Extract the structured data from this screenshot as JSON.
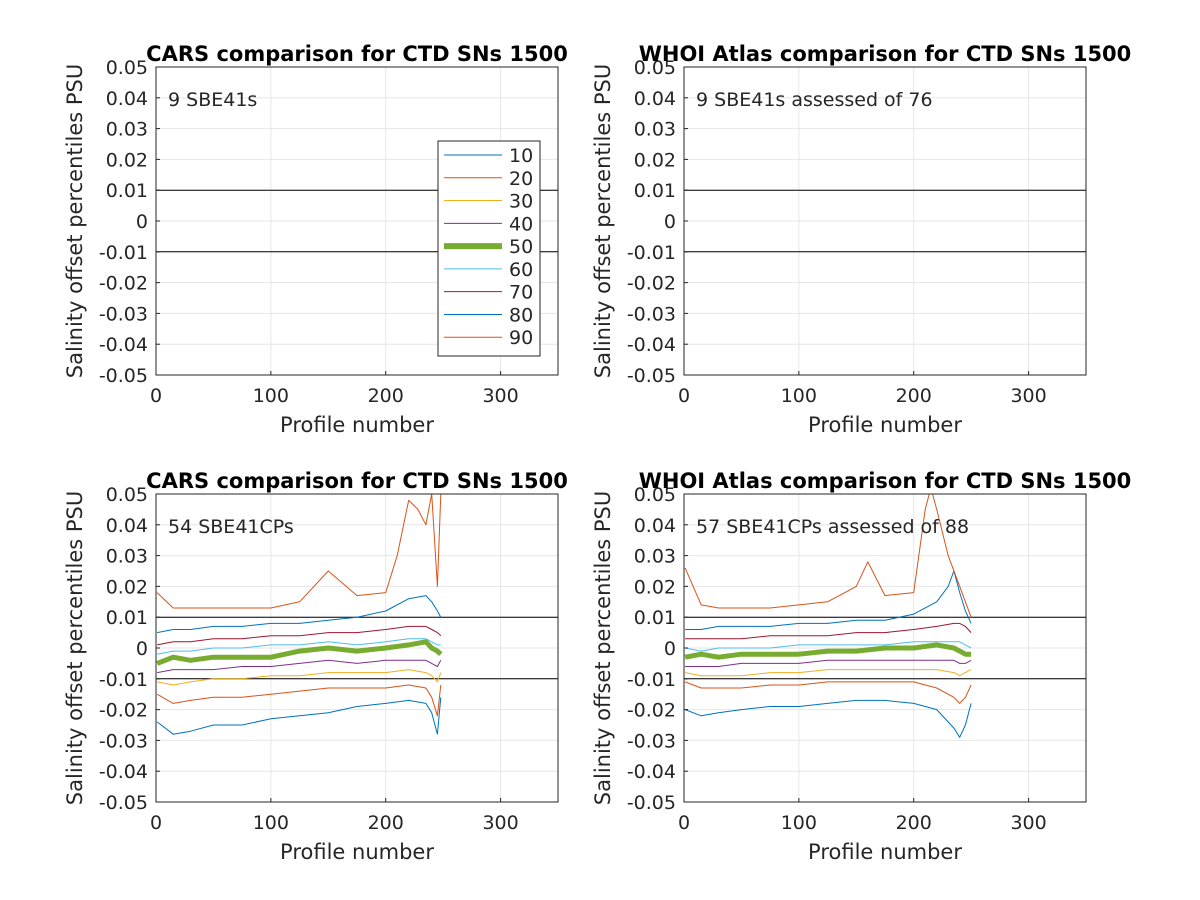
{
  "chart_data": [
    {
      "type": "line",
      "title": "CARS comparison for CTD SNs 1500",
      "xlabel": "Profile number",
      "ylabel": "Salinity offset percentiles PSU",
      "xlim": [
        0,
        350
      ],
      "ylim": [
        -0.05,
        0.05
      ],
      "xticks": [
        0,
        100,
        200,
        300
      ],
      "yticks": [
        0.05,
        0.04,
        0.03,
        0.02,
        0.01,
        0,
        -0.01,
        -0.02,
        -0.03,
        -0.04,
        -0.05
      ],
      "xtick_labels": [
        "0",
        "100",
        "200",
        "300"
      ],
      "ytick_labels": [
        "0.05",
        "0.04",
        "0.03",
        "0.02",
        "0.01",
        "0",
        "-0.01",
        "-0.02",
        "-0.03",
        "-0.04",
        "-0.05"
      ],
      "grid": true,
      "reference_lines": [
        0.01,
        -0.01
      ],
      "annotation": "9 SBE41s",
      "legend": {
        "location": "right",
        "entries": [
          "10",
          "20",
          "30",
          "40",
          "50",
          "60",
          "70",
          "80",
          "90"
        ],
        "colors": [
          "#0072BD",
          "#D95319",
          "#EDB120",
          "#7E2F8E",
          "#77AC30",
          "#4DBEEE",
          "#A2142F",
          "#0072BD",
          "#D95319"
        ]
      },
      "series": []
    },
    {
      "type": "line",
      "title": "WHOI Atlas comparison for CTD SNs 1500",
      "xlabel": "Profile number",
      "ylabel": "Salinity offset percentiles PSU",
      "xlim": [
        0,
        350
      ],
      "ylim": [
        -0.05,
        0.05
      ],
      "xticks": [
        0,
        100,
        200,
        300
      ],
      "yticks": [
        0.05,
        0.04,
        0.03,
        0.02,
        0.01,
        0,
        -0.01,
        -0.02,
        -0.03,
        -0.04,
        -0.05
      ],
      "xtick_labels": [
        "0",
        "100",
        "200",
        "300"
      ],
      "ytick_labels": [
        "0.05",
        "0.04",
        "0.03",
        "0.02",
        "0.01",
        "0",
        "-0.01",
        "-0.02",
        "-0.03",
        "-0.04",
        "-0.05"
      ],
      "grid": true,
      "reference_lines": [
        0.01,
        -0.01
      ],
      "annotation": "9 SBE41s assessed of 76",
      "series": []
    },
    {
      "type": "line",
      "title": "CARS comparison for CTD SNs 1500",
      "xlabel": "Profile number",
      "ylabel": "Salinity offset percentiles PSU",
      "xlim": [
        0,
        350
      ],
      "ylim": [
        -0.05,
        0.05
      ],
      "xticks": [
        0,
        100,
        200,
        300
      ],
      "yticks": [
        0.05,
        0.04,
        0.03,
        0.02,
        0.01,
        0,
        -0.01,
        -0.02,
        -0.03,
        -0.04,
        -0.05
      ],
      "xtick_labels": [
        "0",
        "100",
        "200",
        "300"
      ],
      "ytick_labels": [
        "0.05",
        "0.04",
        "0.03",
        "0.02",
        "0.01",
        "0",
        "-0.01",
        "-0.02",
        "-0.03",
        "-0.04",
        "-0.05"
      ],
      "grid": true,
      "reference_lines": [
        0.01,
        -0.01
      ],
      "annotation": "54 SBE41CPs",
      "series": [
        {
          "name": "10",
          "color": "#0072BD",
          "width": 1,
          "x": [
            1,
            15,
            30,
            50,
            75,
            100,
            125,
            150,
            175,
            200,
            220,
            235,
            240,
            245,
            248
          ],
          "y": [
            -0.024,
            -0.028,
            -0.027,
            -0.025,
            -0.025,
            -0.023,
            -0.022,
            -0.021,
            -0.019,
            -0.018,
            -0.017,
            -0.018,
            -0.021,
            -0.028,
            -0.016
          ]
        },
        {
          "name": "20",
          "color": "#D95319",
          "width": 1,
          "x": [
            1,
            15,
            30,
            50,
            75,
            100,
            125,
            150,
            175,
            200,
            220,
            235,
            240,
            245,
            248
          ],
          "y": [
            -0.015,
            -0.018,
            -0.017,
            -0.016,
            -0.016,
            -0.015,
            -0.014,
            -0.013,
            -0.013,
            -0.013,
            -0.012,
            -0.013,
            -0.016,
            -0.022,
            -0.012
          ]
        },
        {
          "name": "30",
          "color": "#EDB120",
          "width": 1,
          "x": [
            1,
            15,
            30,
            50,
            75,
            100,
            125,
            150,
            175,
            200,
            220,
            235,
            240,
            245,
            248
          ],
          "y": [
            -0.011,
            -0.012,
            -0.011,
            -0.01,
            -0.01,
            -0.009,
            -0.009,
            -0.008,
            -0.008,
            -0.008,
            -0.007,
            -0.008,
            -0.009,
            -0.011,
            -0.008
          ]
        },
        {
          "name": "40",
          "color": "#7E2F8E",
          "width": 1,
          "x": [
            1,
            15,
            30,
            50,
            75,
            100,
            125,
            150,
            175,
            200,
            220,
            235,
            240,
            245,
            248
          ],
          "y": [
            -0.008,
            -0.007,
            -0.007,
            -0.007,
            -0.006,
            -0.006,
            -0.005,
            -0.004,
            -0.005,
            -0.004,
            -0.004,
            -0.004,
            -0.005,
            -0.006,
            -0.004
          ]
        },
        {
          "name": "60",
          "color": "#4DBEEE",
          "width": 1,
          "x": [
            1,
            15,
            30,
            50,
            75,
            100,
            125,
            150,
            175,
            200,
            220,
            235,
            240,
            245,
            248
          ],
          "y": [
            -0.002,
            -0.001,
            -0.001,
            0.0,
            0.0,
            0.001,
            0.001,
            0.002,
            0.001,
            0.002,
            0.003,
            0.003,
            0.002,
            0.001,
            0.001
          ]
        },
        {
          "name": "70",
          "color": "#A2142F",
          "width": 1,
          "x": [
            1,
            15,
            30,
            50,
            75,
            100,
            125,
            150,
            175,
            200,
            220,
            235,
            240,
            245,
            248
          ],
          "y": [
            0.001,
            0.002,
            0.002,
            0.003,
            0.003,
            0.004,
            0.004,
            0.005,
            0.005,
            0.006,
            0.007,
            0.007,
            0.006,
            0.005,
            0.004
          ]
        },
        {
          "name": "80",
          "color": "#0072BD",
          "width": 1,
          "x": [
            1,
            15,
            30,
            50,
            75,
            100,
            125,
            150,
            175,
            200,
            220,
            235,
            240,
            245,
            248
          ],
          "y": [
            0.005,
            0.006,
            0.006,
            0.007,
            0.007,
            0.008,
            0.008,
            0.009,
            0.01,
            0.012,
            0.016,
            0.017,
            0.015,
            0.012,
            0.01
          ]
        },
        {
          "name": "90",
          "color": "#D95319",
          "width": 1,
          "x": [
            1,
            15,
            30,
            50,
            75,
            100,
            125,
            150,
            175,
            200,
            210,
            220,
            228,
            235,
            240,
            245,
            248
          ],
          "y": [
            0.018,
            0.013,
            0.013,
            0.013,
            0.013,
            0.013,
            0.015,
            0.025,
            0.017,
            0.018,
            0.03,
            0.048,
            0.045,
            0.04,
            0.05,
            0.02,
            0.05
          ]
        },
        {
          "name": "50",
          "color": "#77AC30",
          "width": 5,
          "x": [
            1,
            15,
            30,
            50,
            75,
            100,
            125,
            150,
            175,
            200,
            220,
            235,
            240,
            245,
            248
          ],
          "y": [
            -0.005,
            -0.003,
            -0.004,
            -0.003,
            -0.003,
            -0.003,
            -0.001,
            0.0,
            -0.001,
            0.0,
            0.001,
            0.002,
            0.0,
            -0.001,
            -0.002
          ]
        }
      ]
    },
    {
      "type": "line",
      "title": "WHOI Atlas comparison for CTD SNs 1500",
      "xlabel": "Profile number",
      "ylabel": "Salinity offset percentiles PSU",
      "xlim": [
        0,
        350
      ],
      "ylim": [
        -0.05,
        0.05
      ],
      "xticks": [
        0,
        100,
        200,
        300
      ],
      "yticks": [
        0.05,
        0.04,
        0.03,
        0.02,
        0.01,
        0,
        -0.01,
        -0.02,
        -0.03,
        -0.04,
        -0.05
      ],
      "xtick_labels": [
        "0",
        "100",
        "200",
        "300"
      ],
      "ytick_labels": [
        "0.05",
        "0.04",
        "0.03",
        "0.02",
        "0.01",
        "0",
        "-0.01",
        "-0.02",
        "-0.03",
        "-0.04",
        "-0.05"
      ],
      "grid": true,
      "reference_lines": [
        0.01,
        -0.01
      ],
      "annotation": "57 SBE41CPs assessed of 88",
      "series": [
        {
          "name": "10",
          "color": "#0072BD",
          "width": 1,
          "x": [
            1,
            15,
            30,
            50,
            75,
            100,
            125,
            150,
            175,
            200,
            220,
            235,
            240,
            245,
            250
          ],
          "y": [
            -0.02,
            -0.022,
            -0.021,
            -0.02,
            -0.019,
            -0.019,
            -0.018,
            -0.017,
            -0.017,
            -0.018,
            -0.02,
            -0.026,
            -0.029,
            -0.025,
            -0.018
          ]
        },
        {
          "name": "20",
          "color": "#D95319",
          "width": 1,
          "x": [
            1,
            15,
            30,
            50,
            75,
            100,
            125,
            150,
            175,
            200,
            220,
            235,
            240,
            245,
            250
          ],
          "y": [
            -0.011,
            -0.013,
            -0.013,
            -0.013,
            -0.012,
            -0.012,
            -0.011,
            -0.011,
            -0.011,
            -0.011,
            -0.013,
            -0.016,
            -0.018,
            -0.016,
            -0.012
          ]
        },
        {
          "name": "30",
          "color": "#EDB120",
          "width": 1,
          "x": [
            1,
            15,
            30,
            50,
            75,
            100,
            125,
            150,
            175,
            200,
            220,
            235,
            240,
            245,
            250
          ],
          "y": [
            -0.008,
            -0.009,
            -0.009,
            -0.009,
            -0.008,
            -0.008,
            -0.007,
            -0.007,
            -0.007,
            -0.007,
            -0.007,
            -0.008,
            -0.009,
            -0.008,
            -0.007
          ]
        },
        {
          "name": "40",
          "color": "#7E2F8E",
          "width": 1,
          "x": [
            1,
            15,
            30,
            50,
            75,
            100,
            125,
            150,
            175,
            200,
            220,
            235,
            240,
            245,
            250
          ],
          "y": [
            -0.006,
            -0.006,
            -0.006,
            -0.005,
            -0.005,
            -0.005,
            -0.004,
            -0.004,
            -0.004,
            -0.004,
            -0.004,
            -0.004,
            -0.005,
            -0.005,
            -0.004
          ]
        },
        {
          "name": "60",
          "color": "#4DBEEE",
          "width": 1,
          "x": [
            1,
            15,
            30,
            50,
            75,
            100,
            125,
            150,
            175,
            200,
            220,
            235,
            240,
            245,
            250
          ],
          "y": [
            0.0,
            -0.001,
            0.0,
            0.0,
            0.0,
            0.001,
            0.001,
            0.001,
            0.001,
            0.002,
            0.002,
            0.002,
            0.002,
            0.001,
            0.0
          ]
        },
        {
          "name": "70",
          "color": "#A2142F",
          "width": 1,
          "x": [
            1,
            15,
            30,
            50,
            75,
            100,
            125,
            150,
            175,
            200,
            220,
            235,
            240,
            245,
            250
          ],
          "y": [
            0.003,
            0.003,
            0.003,
            0.003,
            0.004,
            0.004,
            0.004,
            0.005,
            0.005,
            0.006,
            0.007,
            0.008,
            0.008,
            0.007,
            0.005
          ]
        },
        {
          "name": "80",
          "color": "#0072BD",
          "width": 1,
          "x": [
            1,
            15,
            30,
            50,
            75,
            100,
            125,
            150,
            175,
            200,
            220,
            230,
            235,
            240,
            245,
            250
          ],
          "y": [
            0.006,
            0.006,
            0.007,
            0.007,
            0.007,
            0.008,
            0.008,
            0.009,
            0.009,
            0.011,
            0.015,
            0.02,
            0.025,
            0.018,
            0.012,
            0.008
          ]
        },
        {
          "name": "90",
          "color": "#D95319",
          "width": 1,
          "x": [
            1,
            15,
            30,
            50,
            75,
            100,
            125,
            150,
            160,
            175,
            200,
            210,
            215,
            220,
            230,
            240,
            245,
            250
          ],
          "y": [
            0.026,
            0.014,
            0.013,
            0.013,
            0.013,
            0.014,
            0.015,
            0.02,
            0.028,
            0.017,
            0.018,
            0.045,
            0.052,
            0.045,
            0.03,
            0.02,
            0.015,
            0.01
          ]
        },
        {
          "name": "50",
          "color": "#77AC30",
          "width": 5,
          "x": [
            1,
            15,
            30,
            50,
            75,
            100,
            125,
            150,
            175,
            200,
            220,
            235,
            240,
            245,
            250
          ],
          "y": [
            -0.003,
            -0.002,
            -0.003,
            -0.002,
            -0.002,
            -0.002,
            -0.001,
            -0.001,
            0.0,
            0.0,
            0.001,
            0.0,
            -0.001,
            -0.002,
            -0.002
          ]
        }
      ]
    }
  ]
}
